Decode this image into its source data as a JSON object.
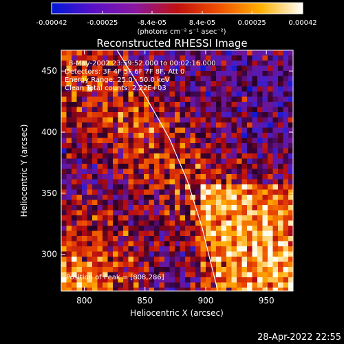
{
  "chart_data": {
    "type": "heatmap",
    "title": "Reconstructed RHESSI Image",
    "xlabel": "Heliocentric X (arcsec)",
    "ylabel": "Heliocentric Y (arcsec)",
    "xlim": [
      781,
      972
    ],
    "ylim": [
      270,
      467
    ],
    "x_ticks": [
      800,
      850,
      900,
      950
    ],
    "y_ticks": [
      300,
      350,
      400,
      450
    ],
    "colorbar": {
      "ticks": [
        -0.00042,
        -0.00025,
        -8.4e-05,
        8.4e-05,
        0.00025,
        0.00042
      ],
      "tick_labels": [
        "-0.00042",
        "-0.00025",
        "-8.4e-05",
        "8.4e-05",
        "0.00025",
        "0.00042"
      ],
      "unit_label": "(photons cm⁻² s⁻¹ asec⁻²)",
      "range": [
        -0.00042,
        0.00042
      ],
      "colors": [
        "#0018d8",
        "#5a10c8",
        "#8a18a0",
        "#c01010",
        "#f05000",
        "#ffb000",
        "#ffffff"
      ]
    },
    "annotations": {
      "time_range": "8-May-2002 23:59:52.000  to 00:02:16.000",
      "detectors": "Detectors: 3F 4F 5F 6F 7F 8F, Att  0",
      "energy": "Energy Range: 25.0 - 50.0 keV",
      "clean": "Clean     Total counts: 2.22E+03",
      "peak": "Position of Peak = [808,286]"
    },
    "limb_curve": [
      [
        827,
        467
      ],
      [
        850,
        430
      ],
      [
        870,
        395
      ],
      [
        885,
        360
      ],
      [
        897,
        322
      ],
      [
        905,
        290
      ],
      [
        910,
        270
      ]
    ]
  },
  "footer": {
    "timestamp": "28-Apr-2022 22:55"
  }
}
